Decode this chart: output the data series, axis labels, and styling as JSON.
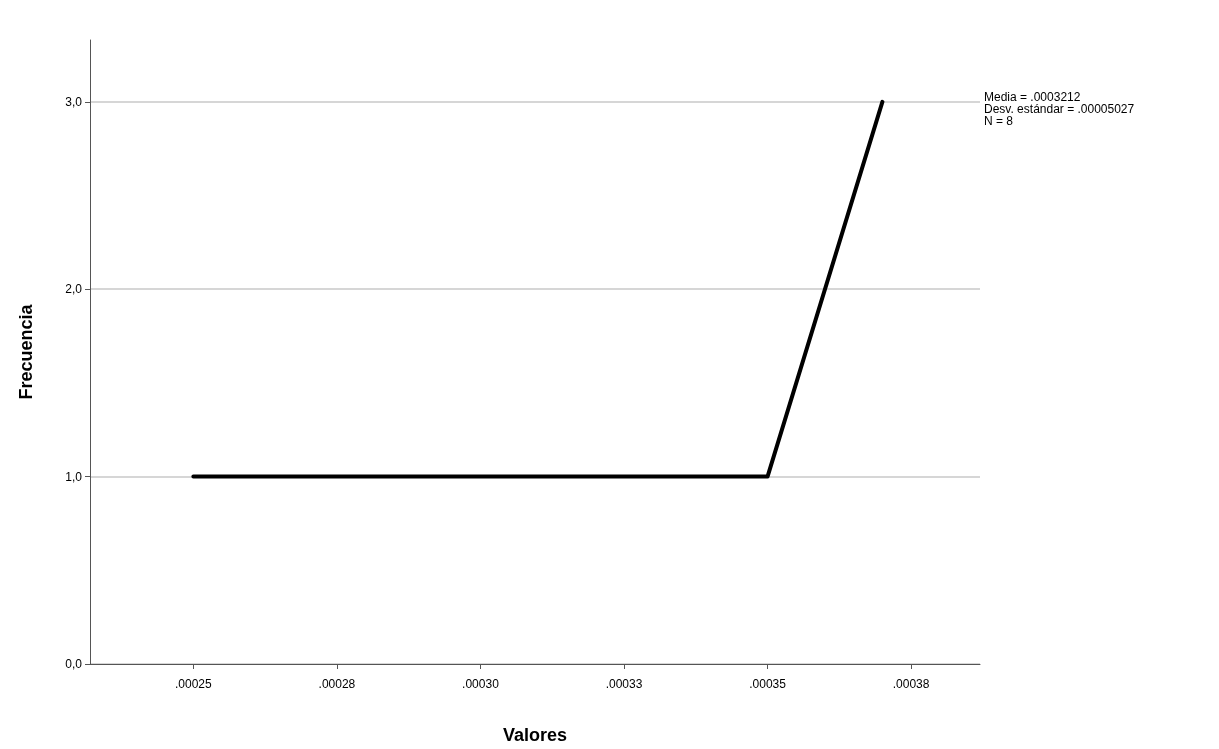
{
  "chart_data": {
    "type": "line",
    "xlabel": "Valores",
    "ylabel": "Frecuencia",
    "annotations": [
      "Media = .0003212",
      "Desv. estándar = .00005027",
      "N = 8"
    ],
    "x": [
      0.00025,
      0.00035,
      0.00037
    ],
    "series": [
      {
        "color": "#000000",
        "values": [
          1,
          1,
          3
        ]
      }
    ],
    "xlim": [
      0.000232,
      0.000387
    ],
    "xticks": [
      {
        "value": 0.00025,
        "label": ".00025"
      },
      {
        "value": 0.000275,
        "label": ".00028"
      },
      {
        "value": 0.0003,
        "label": ".00030"
      },
      {
        "value": 0.000325,
        "label": ".00033"
      },
      {
        "value": 0.00035,
        "label": ".00035"
      },
      {
        "value": 0.000375,
        "label": ".00038"
      }
    ],
    "ylim": [
      0,
      3.33
    ],
    "yticks": [
      {
        "value": 0,
        "label": "0,0"
      },
      {
        "value": 1,
        "label": "1,0"
      },
      {
        "value": 2,
        "label": "2,0"
      },
      {
        "value": 3,
        "label": "3,0"
      }
    ],
    "grid": "y",
    "marker": "none",
    "line_style": "solid"
  }
}
